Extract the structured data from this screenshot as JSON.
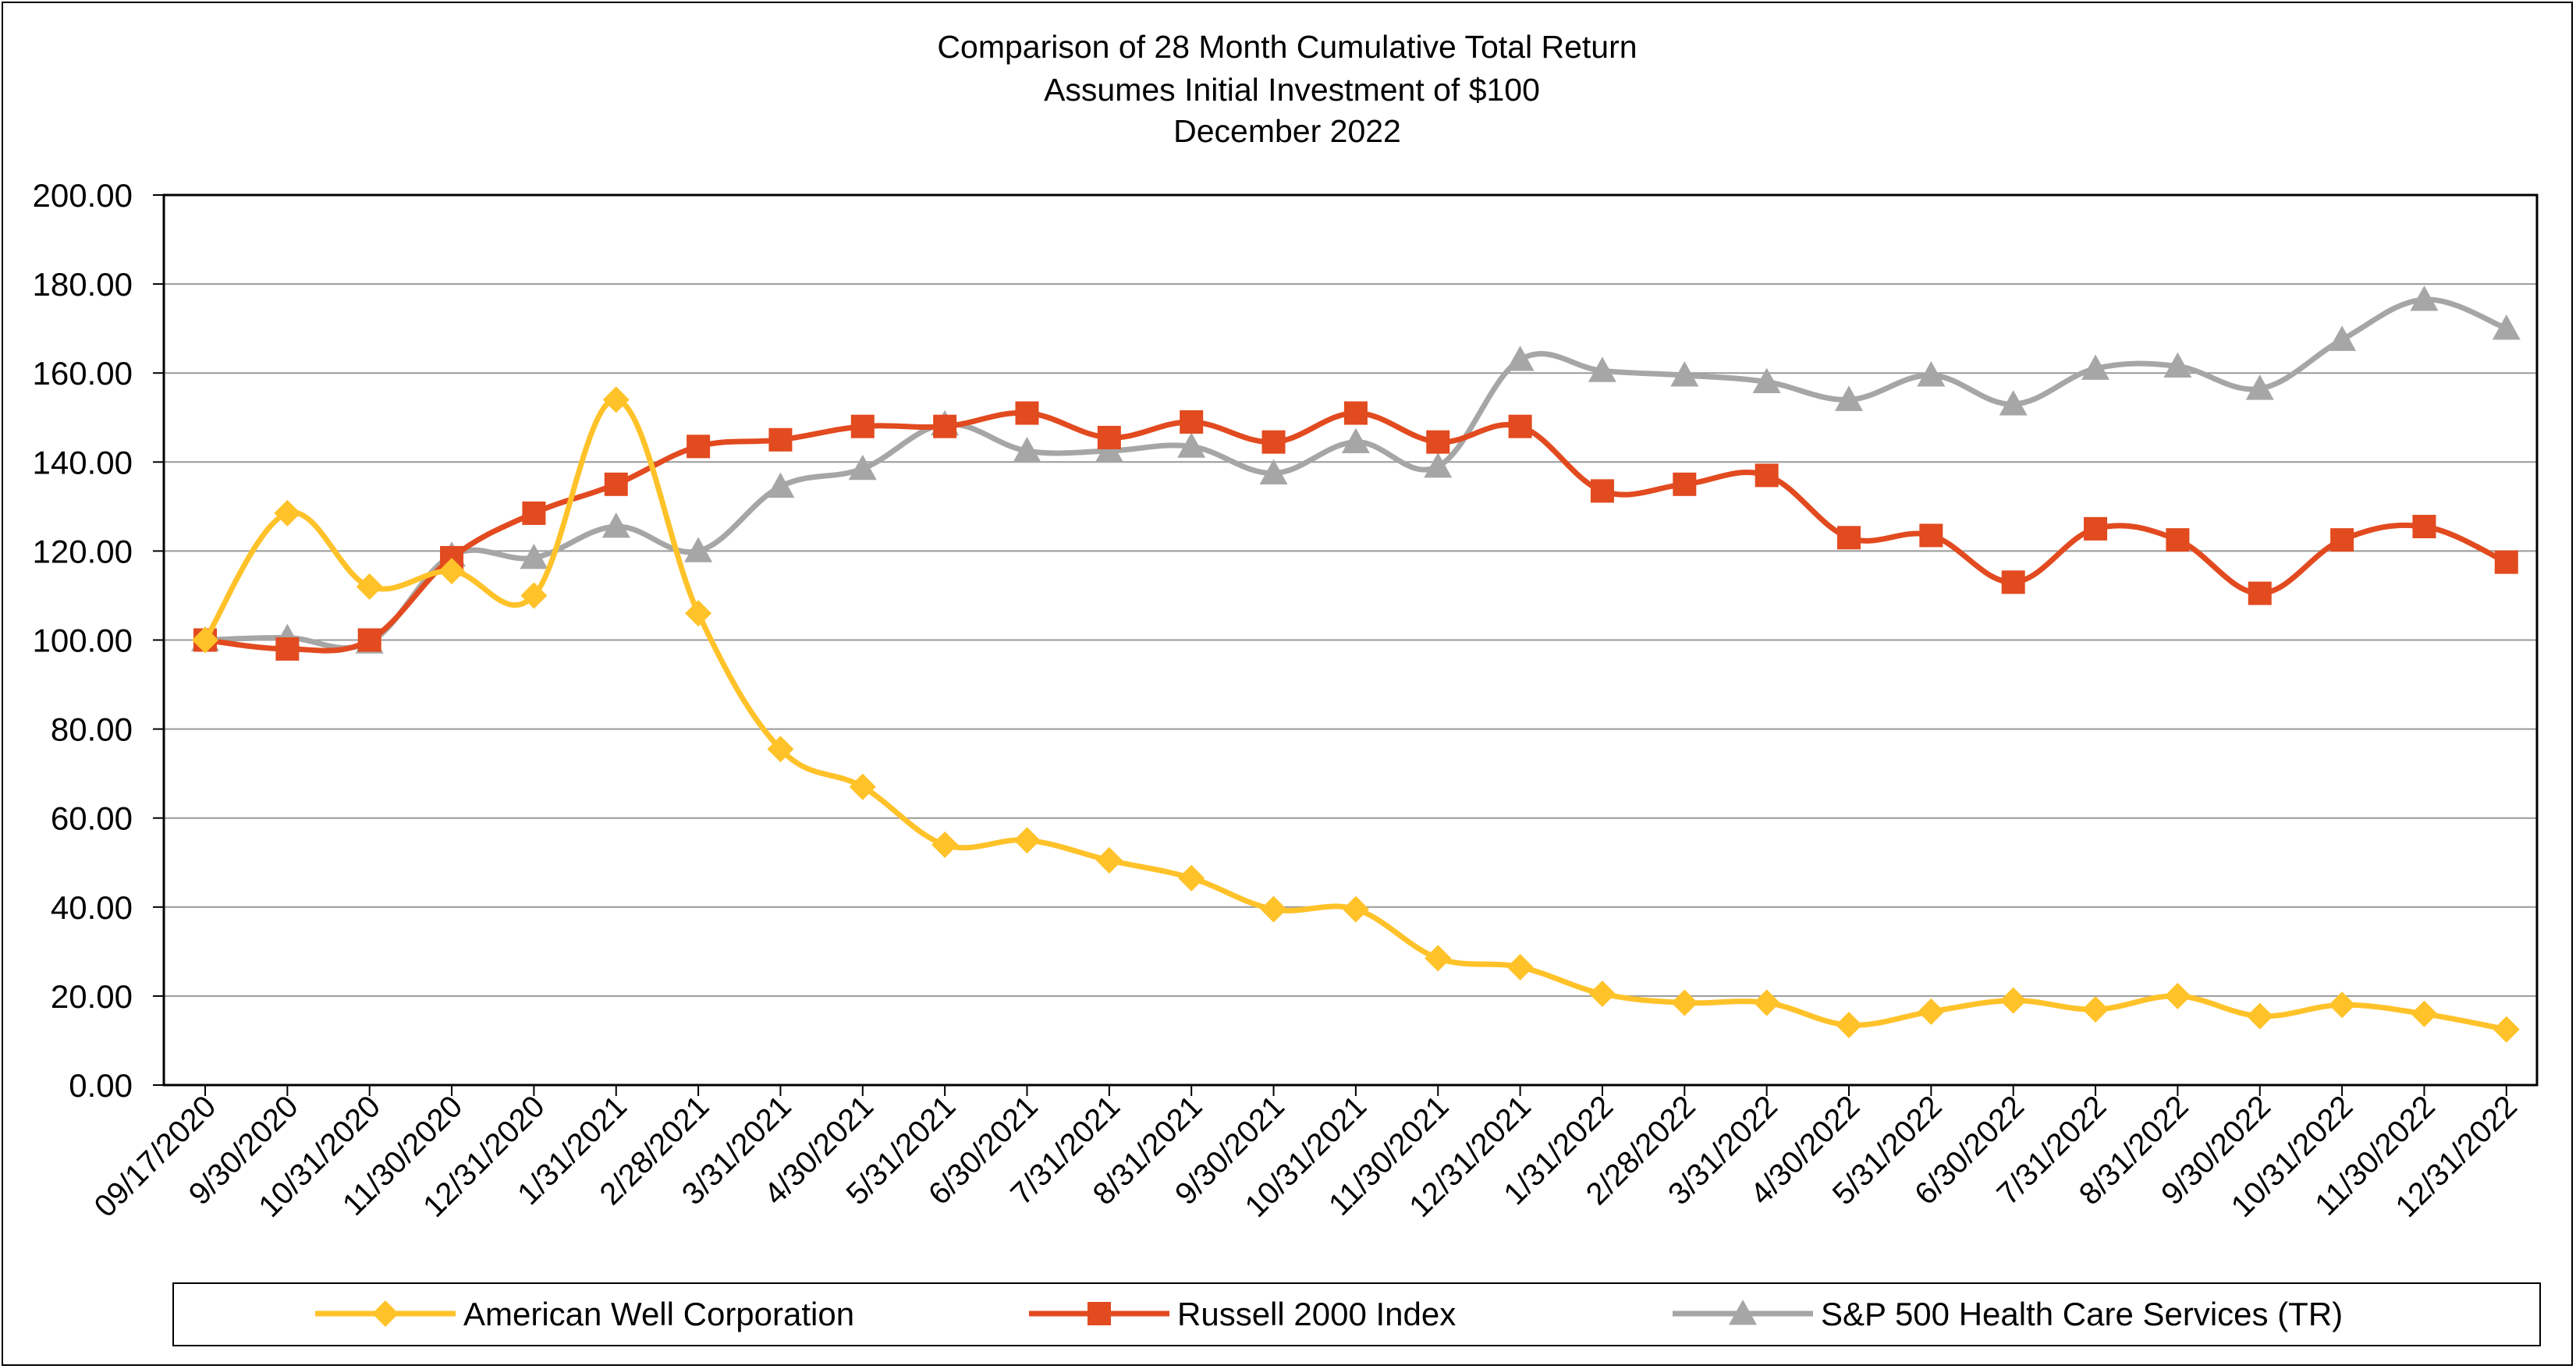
{
  "chart_data": {
    "type": "line",
    "title_lines": [
      "Comparison of 28 Month Cumulative Total Return",
      "Assumes Initial Investment of $100",
      "December 2022"
    ],
    "xlabel": "",
    "ylabel": "",
    "ylim": [
      0,
      200
    ],
    "y_ticks": [
      "0.00",
      "20.00",
      "40.00",
      "60.00",
      "80.00",
      "100.00",
      "120.00",
      "140.00",
      "160.00",
      "180.00",
      "200.00"
    ],
    "categories": [
      "09/17/2020",
      "9/30/2020",
      "10/31/2020",
      "11/30/2020",
      "12/31/2020",
      "1/31/2021",
      "2/28/2021",
      "3/31/2021",
      "4/30/2021",
      "5/31/2021",
      "6/30/2021",
      "7/31/2021",
      "8/31/2021",
      "9/30/2021",
      "10/31/2021",
      "11/30/2021",
      "12/31/2021",
      "1/31/2022",
      "2/28/2022",
      "3/31/2022",
      "4/30/2022",
      "5/31/2022",
      "6/30/2022",
      "7/31/2022",
      "8/31/2022",
      "9/30/2022",
      "10/31/2022",
      "11/30/2022",
      "12/31/2022"
    ],
    "grid": true,
    "legend_position": "bottom",
    "series": [
      {
        "name": "American Well Corporation",
        "color": "#FFC229",
        "marker": "diamond",
        "values": [
          100.0,
          128.5,
          112.0,
          115.5,
          110.0,
          154.0,
          106.0,
          75.5,
          67.0,
          54.0,
          55.0,
          50.5,
          46.5,
          39.5,
          39.5,
          28.5,
          26.5,
          20.5,
          18.5,
          18.5,
          13.5,
          16.5,
          19.0,
          17.0,
          20.0,
          15.5,
          18.0,
          16.0,
          12.5
        ]
      },
      {
        "name": "Russell 2000 Index",
        "color": "#E24A1F",
        "marker": "square",
        "values": [
          100.0,
          98.0,
          100.0,
          118.5,
          128.5,
          135.0,
          143.5,
          145.0,
          148.0,
          148.0,
          151.0,
          145.5,
          149.0,
          144.5,
          151.0,
          144.5,
          148.0,
          133.5,
          135.0,
          137.0,
          123.0,
          123.5,
          113.0,
          125.0,
          122.5,
          110.5,
          122.5,
          125.5,
          117.5
        ]
      },
      {
        "name": "S&P 500 Health Care Services (TR)",
        "color": "#A6A6A6",
        "marker": "triangle",
        "values": [
          100.0,
          100.5,
          99.5,
          119.0,
          118.5,
          125.5,
          120.0,
          134.5,
          138.5,
          148.5,
          142.5,
          142.5,
          143.5,
          137.5,
          144.5,
          139.0,
          163.0,
          160.5,
          159.5,
          158.0,
          154.0,
          159.5,
          153.0,
          161.0,
          161.5,
          156.5,
          167.5,
          176.5,
          170.0
        ]
      }
    ]
  }
}
